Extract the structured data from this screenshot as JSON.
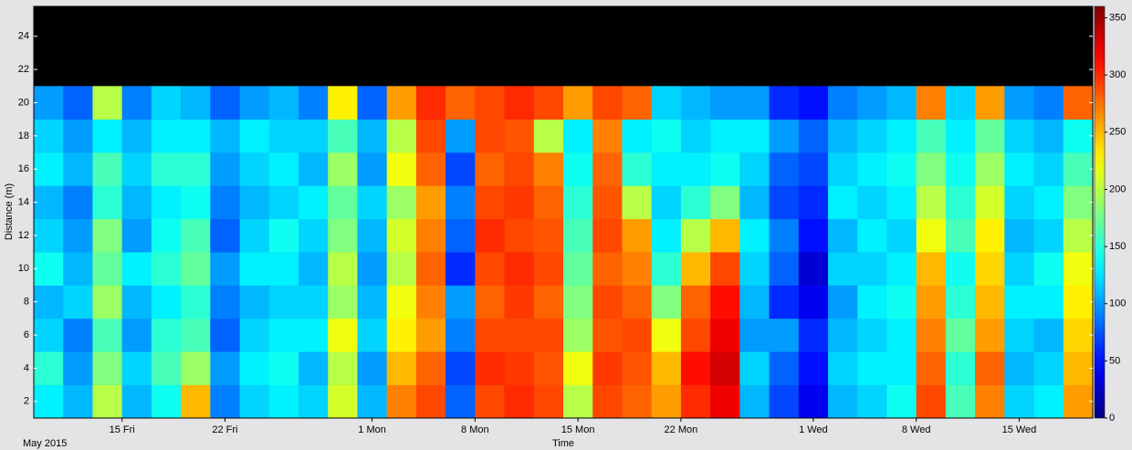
{
  "chart_data": {
    "type": "heatmap",
    "colormap": "jet",
    "ylabel": "Distance (m)",
    "xlabel": "Time",
    "x_sublabel": "May 2015",
    "xlim": [
      "2015-05-09",
      "2015-07-20"
    ],
    "xticks": [
      {
        "value": "2015-05-15",
        "label": "15 Fri"
      },
      {
        "value": "2015-05-22",
        "label": "22 Fri"
      },
      {
        "value": "2015-06-01",
        "label": "1 Mon"
      },
      {
        "value": "2015-06-08",
        "label": "8 Mon"
      },
      {
        "value": "2015-06-15",
        "label": "15 Mon"
      },
      {
        "value": "2015-06-22",
        "label": "22 Mon"
      },
      {
        "value": "2015-07-01",
        "label": "1 Wed"
      },
      {
        "value": "2015-07-08",
        "label": "8 Wed"
      },
      {
        "value": "2015-07-15",
        "label": "15 Wed"
      }
    ],
    "ylim": [
      1,
      25.8
    ],
    "yticks": [
      2,
      4,
      6,
      8,
      10,
      12,
      14,
      16,
      18,
      20,
      22,
      24
    ],
    "clim": [
      0,
      360
    ],
    "cticks": [
      0,
      50,
      100,
      150,
      200,
      250,
      300,
      350
    ],
    "x": [
      "2015-05-09",
      "2015-05-11",
      "2015-05-13",
      "2015-05-15",
      "2015-05-17",
      "2015-05-19",
      "2015-05-21",
      "2015-05-23",
      "2015-05-25",
      "2015-05-27",
      "2015-05-29",
      "2015-05-31",
      "2015-06-02",
      "2015-06-04",
      "2015-06-06",
      "2015-06-08",
      "2015-06-10",
      "2015-06-12",
      "2015-06-14",
      "2015-06-16",
      "2015-06-18",
      "2015-06-20",
      "2015-06-22",
      "2015-06-24",
      "2015-06-26",
      "2015-06-28",
      "2015-06-30",
      "2015-07-02",
      "2015-07-04",
      "2015-07-06",
      "2015-07-08",
      "2015-07-10",
      "2015-07-12",
      "2015-07-14",
      "2015-07-16",
      "2015-07-18",
      "2015-07-20"
    ],
    "y": [
      1,
      3,
      5,
      7,
      9,
      11,
      13,
      15,
      17,
      19,
      21
    ],
    "z": [
      [
        130,
        150,
        120,
        110,
        140,
        120,
        110,
        130,
        120,
        100
      ],
      [
        110,
        100,
        90,
        120,
        110,
        100,
        90,
        110,
        100,
        80
      ],
      [
        200,
        180,
        160,
        190,
        170,
        180,
        150,
        160,
        130,
        200
      ],
      [
        110,
        120,
        100,
        110,
        130,
        100,
        110,
        120,
        110,
        90
      ],
      [
        140,
        160,
        150,
        130,
        150,
        140,
        130,
        150,
        130,
        120
      ],
      [
        250,
        190,
        160,
        150,
        170,
        160,
        140,
        150,
        130,
        110
      ],
      [
        90,
        100,
        80,
        90,
        100,
        80,
        90,
        100,
        110,
        80
      ],
      [
        120,
        130,
        120,
        110,
        130,
        120,
        110,
        120,
        130,
        100
      ],
      [
        130,
        140,
        130,
        120,
        130,
        140,
        120,
        130,
        120,
        110
      ],
      [
        120,
        110,
        130,
        120,
        110,
        120,
        130,
        110,
        120,
        90
      ],
      [
        210,
        200,
        220,
        190,
        200,
        180,
        170,
        190,
        160,
        230
      ],
      [
        110,
        100,
        120,
        110,
        100,
        110,
        120,
        100,
        110,
        80
      ],
      [
        270,
        250,
        230,
        220,
        200,
        210,
        190,
        220,
        200,
        260
      ],
      [
        290,
        280,
        260,
        270,
        280,
        270,
        260,
        280,
        290,
        300
      ],
      [
        80,
        70,
        90,
        100,
        60,
        80,
        90,
        70,
        100,
        280
      ],
      [
        290,
        300,
        290,
        280,
        290,
        300,
        290,
        280,
        290,
        290
      ],
      [
        300,
        295,
        290,
        295,
        300,
        290,
        295,
        290,
        285,
        300
      ],
      [
        290,
        285,
        290,
        280,
        290,
        285,
        280,
        270,
        200,
        290
      ],
      [
        200,
        220,
        190,
        180,
        170,
        160,
        150,
        140,
        130,
        260
      ],
      [
        290,
        295,
        285,
        290,
        280,
        290,
        285,
        280,
        270,
        290
      ],
      [
        280,
        285,
        290,
        280,
        270,
        260,
        200,
        150,
        130,
        280
      ],
      [
        260,
        250,
        220,
        180,
        150,
        130,
        120,
        130,
        140,
        120
      ],
      [
        300,
        310,
        290,
        280,
        250,
        200,
        150,
        130,
        120,
        110
      ],
      [
        320,
        330,
        320,
        310,
        290,
        250,
        180,
        140,
        130,
        100
      ],
      [
        110,
        120,
        100,
        110,
        120,
        130,
        110,
        120,
        130,
        100
      ],
      [
        70,
        80,
        100,
        60,
        80,
        90,
        70,
        80,
        100,
        60
      ],
      [
        40,
        50,
        60,
        40,
        30,
        50,
        60,
        70,
        80,
        50
      ],
      [
        110,
        120,
        110,
        100,
        120,
        110,
        130,
        120,
        110,
        90
      ],
      [
        120,
        130,
        120,
        130,
        120,
        130,
        120,
        130,
        120,
        100
      ],
      [
        140,
        130,
        130,
        140,
        130,
        120,
        130,
        140,
        130,
        110
      ],
      [
        290,
        280,
        270,
        260,
        250,
        220,
        200,
        180,
        160,
        270
      ],
      [
        160,
        150,
        170,
        150,
        140,
        160,
        150,
        140,
        130,
        120
      ],
      [
        270,
        280,
        260,
        250,
        240,
        230,
        210,
        190,
        170,
        260
      ],
      [
        120,
        110,
        120,
        130,
        120,
        110,
        120,
        130,
        120,
        100
      ],
      [
        130,
        120,
        110,
        130,
        140,
        120,
        130,
        120,
        110,
        90
      ],
      [
        260,
        250,
        240,
        230,
        220,
        200,
        180,
        160,
        140,
        280
      ]
    ]
  }
}
